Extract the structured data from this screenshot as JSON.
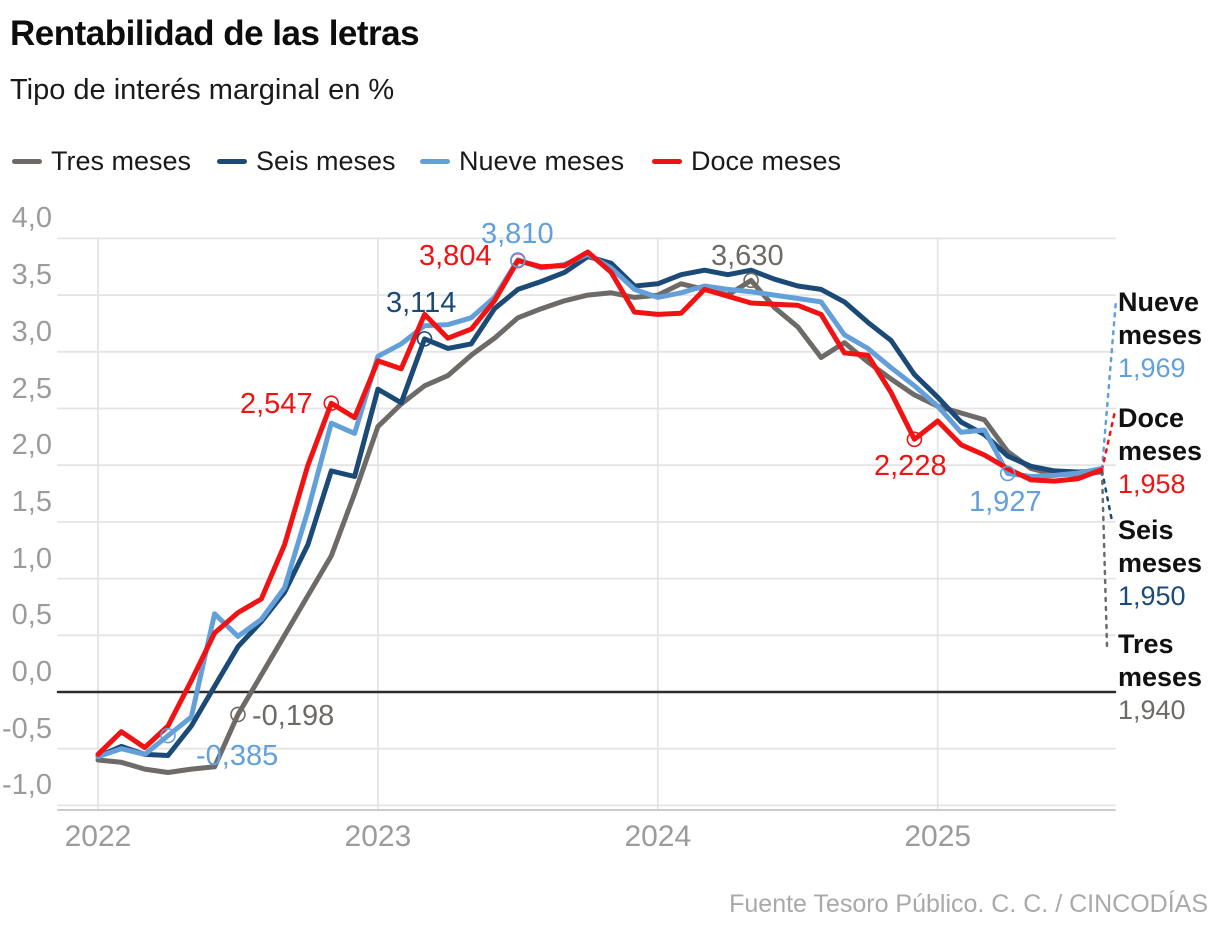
{
  "header": {
    "title": "Rentabilidad de las letras",
    "subtitle": "Tipo de interés marginal en %"
  },
  "source": "Fuente Tesoro Público. C. C. / CINCODÍAS",
  "colors": {
    "background": "#ffffff",
    "grid": "#e4e4e4",
    "zero_line": "#2d2d2d",
    "baseline": "#cccccc",
    "axis_text": "#9b9b9b",
    "source_text": "#a9a9a9"
  },
  "legend": [
    {
      "label": "Tres meses",
      "color": "#6e6a67"
    },
    {
      "label": "Seis meses",
      "color": "#1b4a77"
    },
    {
      "label": "Nueve meses",
      "color": "#63a0da"
    },
    {
      "label": "Doce meses",
      "color": "#f11313"
    }
  ],
  "chart_data": {
    "type": "line",
    "x_unit": "monthly auctions from 2022-01 to 2025-08",
    "ylim": [
      -1.0,
      4.0
    ],
    "grid": "on",
    "legend_position": "top",
    "x_ticks": [
      {
        "label": "2022",
        "m": 0
      },
      {
        "label": "2023",
        "m": 12
      },
      {
        "label": "2024",
        "m": 24
      },
      {
        "label": "2025",
        "m": 36
      }
    ],
    "y_ticks": [
      {
        "label": "4,0",
        "v": 4.0
      },
      {
        "label": "3,5",
        "v": 3.5
      },
      {
        "label": "3,0",
        "v": 3.0
      },
      {
        "label": "2,5",
        "v": 2.5
      },
      {
        "label": "2,0",
        "v": 2.0
      },
      {
        "label": "1,5",
        "v": 1.5
      },
      {
        "label": "1,0",
        "v": 1.0
      },
      {
        "label": "0,5",
        "v": 0.5
      },
      {
        "label": "0,0",
        "v": 0.0
      },
      {
        "label": "-0,5",
        "v": -0.5
      },
      {
        "label": "-1,0",
        "v": -1.0
      }
    ],
    "series": [
      {
        "key": "tres",
        "name": "Tres meses",
        "color": "#6e6a67",
        "values": [
          -0.6,
          -0.62,
          -0.68,
          -0.71,
          -0.68,
          -0.66,
          -0.198,
          0.15,
          0.5,
          0.85,
          1.2,
          1.75,
          2.34,
          2.54,
          2.7,
          2.79,
          2.97,
          3.12,
          3.3,
          3.38,
          3.45,
          3.5,
          3.52,
          3.48,
          3.5,
          3.6,
          3.55,
          3.5,
          3.63,
          3.39,
          3.22,
          2.95,
          3.08,
          2.91,
          2.76,
          2.62,
          2.52,
          2.46,
          2.4,
          2.12,
          1.97,
          1.92,
          1.92,
          1.94
        ]
      },
      {
        "key": "seis",
        "name": "Seis meses",
        "color": "#1b4a77",
        "values": [
          -0.57,
          -0.48,
          -0.55,
          -0.56,
          -0.3,
          0.05,
          0.4,
          0.62,
          0.88,
          1.3,
          1.95,
          1.9,
          2.67,
          2.55,
          3.114,
          3.03,
          3.07,
          3.38,
          3.55,
          3.62,
          3.7,
          3.84,
          3.78,
          3.58,
          3.6,
          3.68,
          3.72,
          3.68,
          3.72,
          3.64,
          3.58,
          3.55,
          3.44,
          3.26,
          3.1,
          2.8,
          2.6,
          2.38,
          2.27,
          2.08,
          1.99,
          1.95,
          1.94,
          1.95
        ]
      },
      {
        "key": "nueve",
        "name": "Nueve meses",
        "color": "#63a0da",
        "values": [
          -0.57,
          -0.5,
          -0.55,
          -0.385,
          -0.22,
          0.69,
          0.49,
          0.64,
          0.92,
          1.6,
          2.37,
          2.28,
          2.96,
          3.07,
          3.23,
          3.24,
          3.3,
          3.48,
          3.81,
          3.74,
          3.77,
          3.86,
          3.74,
          3.55,
          3.48,
          3.52,
          3.58,
          3.55,
          3.53,
          3.5,
          3.47,
          3.44,
          3.15,
          3.03,
          2.86,
          2.7,
          2.52,
          2.29,
          2.31,
          1.927,
          1.9,
          1.91,
          1.93,
          1.969
        ]
      },
      {
        "key": "doce",
        "name": "Doce meses",
        "color": "#f11313",
        "values": [
          -0.55,
          -0.35,
          -0.49,
          -0.3,
          0.1,
          0.52,
          0.7,
          0.82,
          1.3,
          2.0,
          2.547,
          2.42,
          2.92,
          2.85,
          3.33,
          3.12,
          3.2,
          3.45,
          3.804,
          3.75,
          3.76,
          3.88,
          3.7,
          3.35,
          3.33,
          3.34,
          3.55,
          3.49,
          3.43,
          3.42,
          3.41,
          3.33,
          2.99,
          2.97,
          2.64,
          2.228,
          2.39,
          2.18,
          2.09,
          1.97,
          1.87,
          1.86,
          1.88,
          1.958
        ]
      }
    ],
    "annotations": [
      {
        "text": "-0,385",
        "series": "nueve",
        "m": 3,
        "value": -0.385
      },
      {
        "text": "-0,198",
        "series": "tres",
        "m": 6,
        "value": -0.198
      },
      {
        "text": "2,547",
        "series": "doce",
        "m": 10,
        "value": 2.547
      },
      {
        "text": "3,114",
        "series": "seis",
        "m": 14,
        "value": 3.114
      },
      {
        "text": "3,804",
        "series": "doce",
        "m": 18,
        "value": 3.804
      },
      {
        "text": "3,810",
        "series": "nueve",
        "m": 18,
        "value": 3.81
      },
      {
        "text": "3,630",
        "series": "tres",
        "m": 28,
        "value": 3.63
      },
      {
        "text": "2,228",
        "series": "doce",
        "m": 35,
        "value": 2.228
      },
      {
        "text": "1,927",
        "series": "nueve",
        "m": 39,
        "value": 1.927
      }
    ],
    "end_labels": [
      {
        "series": "nueve",
        "label": "Nueve meses",
        "value": "1,969"
      },
      {
        "series": "doce",
        "label": "Doce meses",
        "value": "1,958"
      },
      {
        "series": "seis",
        "label": "Seis meses",
        "value": "1,950"
      },
      {
        "series": "tres",
        "label": "Tres meses",
        "value": "1,940"
      }
    ]
  }
}
